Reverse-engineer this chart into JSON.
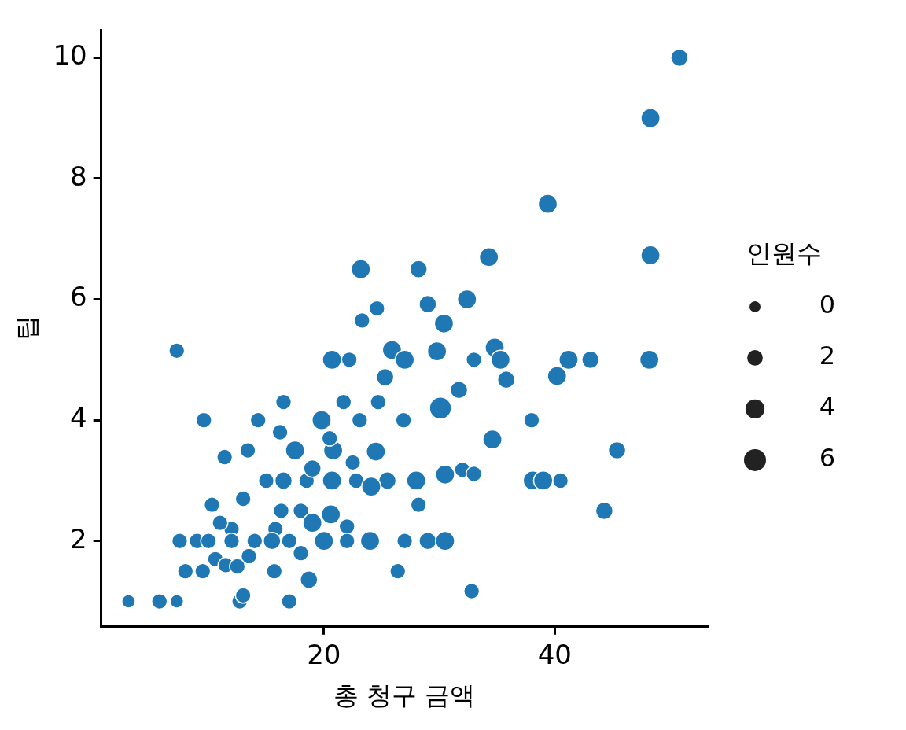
{
  "chart_data": {
    "type": "bubble",
    "xlabel": "총 청구 금액",
    "ylabel": "팁",
    "legend_title": "인원수",
    "grid": false,
    "marker": "circle",
    "xlim": [
      0.7,
      53.2
    ],
    "xticks": [
      20,
      40
    ],
    "ylim": [
      0.58,
      10.46
    ],
    "yticks": [
      2,
      4,
      6,
      8,
      10
    ],
    "size_legend": [
      {
        "value": 0.25,
        "label": "0"
      },
      {
        "value": 0.5,
        "label": "2"
      },
      {
        "value": 0.75,
        "label": "4"
      },
      {
        "value": 1,
        "label": "6"
      }
    ],
    "series": [
      {
        "color": "#1f77b4",
        "x": [
          50.81,
          48.3,
          39.4,
          48.3,
          34.3,
          23.2,
          28.2,
          32.4,
          29,
          24.6,
          30.4,
          23.3,
          7.25,
          20.7,
          22.2,
          25.9,
          27,
          29.8,
          33,
          34.8,
          35.3,
          41.2,
          43.1,
          48.2,
          40.2,
          35.8,
          31.7,
          25.3,
          30.1,
          24.7,
          38,
          16.5,
          21.7,
          9.6,
          14.3,
          19.8,
          23.1,
          26.9,
          34.6,
          45.4,
          17.5,
          20.8,
          24.5,
          13.4,
          11.4,
          15,
          16.5,
          18.5,
          20.7,
          22.8,
          25.5,
          28,
          30.5,
          32,
          33,
          38.1,
          39,
          40.5,
          24.1,
          44.3,
          28.2,
          10.3,
          13,
          16.3,
          18,
          20.6,
          15.8,
          22,
          19,
          12,
          11,
          7.5,
          9,
          10,
          12,
          14,
          15.5,
          17,
          20,
          22,
          24,
          27,
          29,
          30.5,
          13.5,
          10.6,
          8,
          9.5,
          11.5,
          12.5,
          15.7,
          18,
          18.7,
          26.4,
          32.8,
          3.07,
          5.75,
          7.25,
          12.7,
          17,
          13,
          20.5,
          16.2,
          19,
          22.5
        ],
        "values": [
          10,
          9,
          7.58,
          6.73,
          6.7,
          6.5,
          6.5,
          6,
          5.92,
          5.85,
          5.6,
          5.65,
          5.15,
          5,
          5,
          5.16,
          5,
          5.14,
          5,
          5.2,
          5,
          5,
          5,
          5,
          4.73,
          4.67,
          4.5,
          4.71,
          4.2,
          4.3,
          4,
          4.3,
          4.3,
          4,
          4,
          4,
          4,
          4,
          3.68,
          3.5,
          3.5,
          3.5,
          3.48,
          3.5,
          3.39,
          3,
          3,
          3,
          3,
          3,
          3,
          3,
          3.1,
          3.18,
          3.11,
          3,
          3,
          3,
          2.9,
          2.5,
          2.6,
          2.6,
          2.7,
          2.5,
          2.5,
          2.44,
          2.2,
          2.24,
          2.3,
          2.2,
          2.3,
          2,
          2,
          2,
          2,
          2,
          2,
          2,
          2,
          2,
          2,
          2,
          2,
          2,
          1.75,
          1.7,
          1.5,
          1.5,
          1.6,
          1.58,
          1.5,
          1.8,
          1.36,
          1.5,
          1.17,
          1,
          1,
          1,
          1,
          1,
          1.1,
          3.7,
          3.8,
          3.2,
          3.3
        ],
        "sizes": [
          0.625,
          0.75,
          0.75,
          0.75,
          0.75,
          0.75,
          0.625,
          0.75,
          0.625,
          0.5,
          0.75,
          0.5,
          0.5,
          0.75,
          0.5,
          0.75,
          0.75,
          0.75,
          0.5,
          0.75,
          0.75,
          0.75,
          0.625,
          0.75,
          0.75,
          0.625,
          0.625,
          0.625,
          1,
          0.5,
          0.5,
          0.5,
          0.5,
          0.5,
          0.5,
          0.75,
          0.5,
          0.5,
          0.75,
          0.625,
          0.75,
          0.75,
          0.75,
          0.5,
          0.5,
          0.5,
          0.625,
          0.5,
          0.75,
          0.5,
          0.625,
          0.75,
          0.75,
          0.5,
          0.5,
          0.75,
          0.75,
          0.5,
          0.75,
          0.625,
          0.5,
          0.5,
          0.5,
          0.5,
          0.5,
          0.75,
          0.5,
          0.5,
          0.75,
          0.5,
          0.5,
          0.5,
          0.5,
          0.5,
          0.5,
          0.5,
          0.625,
          0.5,
          0.75,
          0.5,
          0.75,
          0.5,
          0.625,
          0.75,
          0.5,
          0.5,
          0.5,
          0.5,
          0.5,
          0.5,
          0.5,
          0.5,
          0.625,
          0.5,
          0.5,
          0.375,
          0.5,
          0.375,
          0.5,
          0.5,
          0.5,
          0.5,
          0.5,
          0.625,
          0.5
        ]
      }
    ]
  }
}
